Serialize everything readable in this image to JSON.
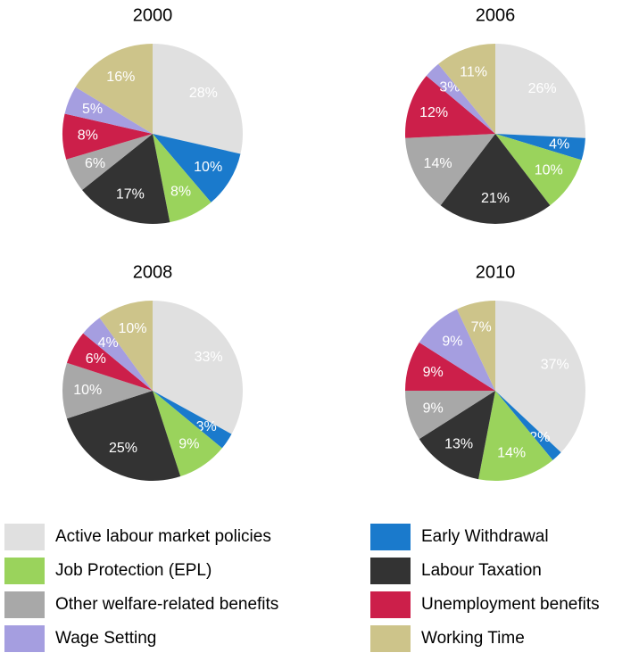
{
  "legend": {
    "categories": [
      "Active labour market policies",
      "Early Withdrawal",
      "Job Protection (EPL)",
      "Labour Taxation",
      "Other welfare-related benefits",
      "Unemployment benefits",
      "Wage Setting",
      "Working Time"
    ],
    "colors": [
      "#e0e0e0",
      "#1a7acc",
      "#9ad35c",
      "#333333",
      "#a8a8a8",
      "#cc1f4a",
      "#a59ee0",
      "#cdc48a"
    ]
  },
  "chart_data": [
    {
      "type": "pie",
      "title": "2000",
      "values": [
        28,
        10,
        8,
        17,
        6,
        8,
        5,
        16
      ],
      "value_labels": [
        "28%",
        "10%",
        "8%",
        "17%",
        "6%",
        "8%",
        "5%",
        "16%"
      ]
    },
    {
      "type": "pie",
      "title": "2006",
      "values": [
        26,
        4,
        10,
        21,
        14,
        12,
        3,
        11
      ],
      "value_labels": [
        "26%",
        "4%",
        "10%",
        "21%",
        "14%",
        "12%",
        "3%",
        "11%"
      ]
    },
    {
      "type": "pie",
      "title": "2008",
      "values": [
        33,
        3,
        9,
        25,
        10,
        6,
        4,
        10
      ],
      "value_labels": [
        "33%",
        "3%",
        "9%",
        "25%",
        "10%",
        "6%",
        "4%",
        "10%"
      ]
    },
    {
      "type": "pie",
      "title": "2010",
      "values": [
        37,
        2,
        14,
        13,
        9,
        9,
        9,
        7
      ],
      "value_labels": [
        "37%",
        "2%",
        "14%",
        "13%",
        "9%",
        "9%",
        "9%",
        "7%"
      ]
    }
  ]
}
